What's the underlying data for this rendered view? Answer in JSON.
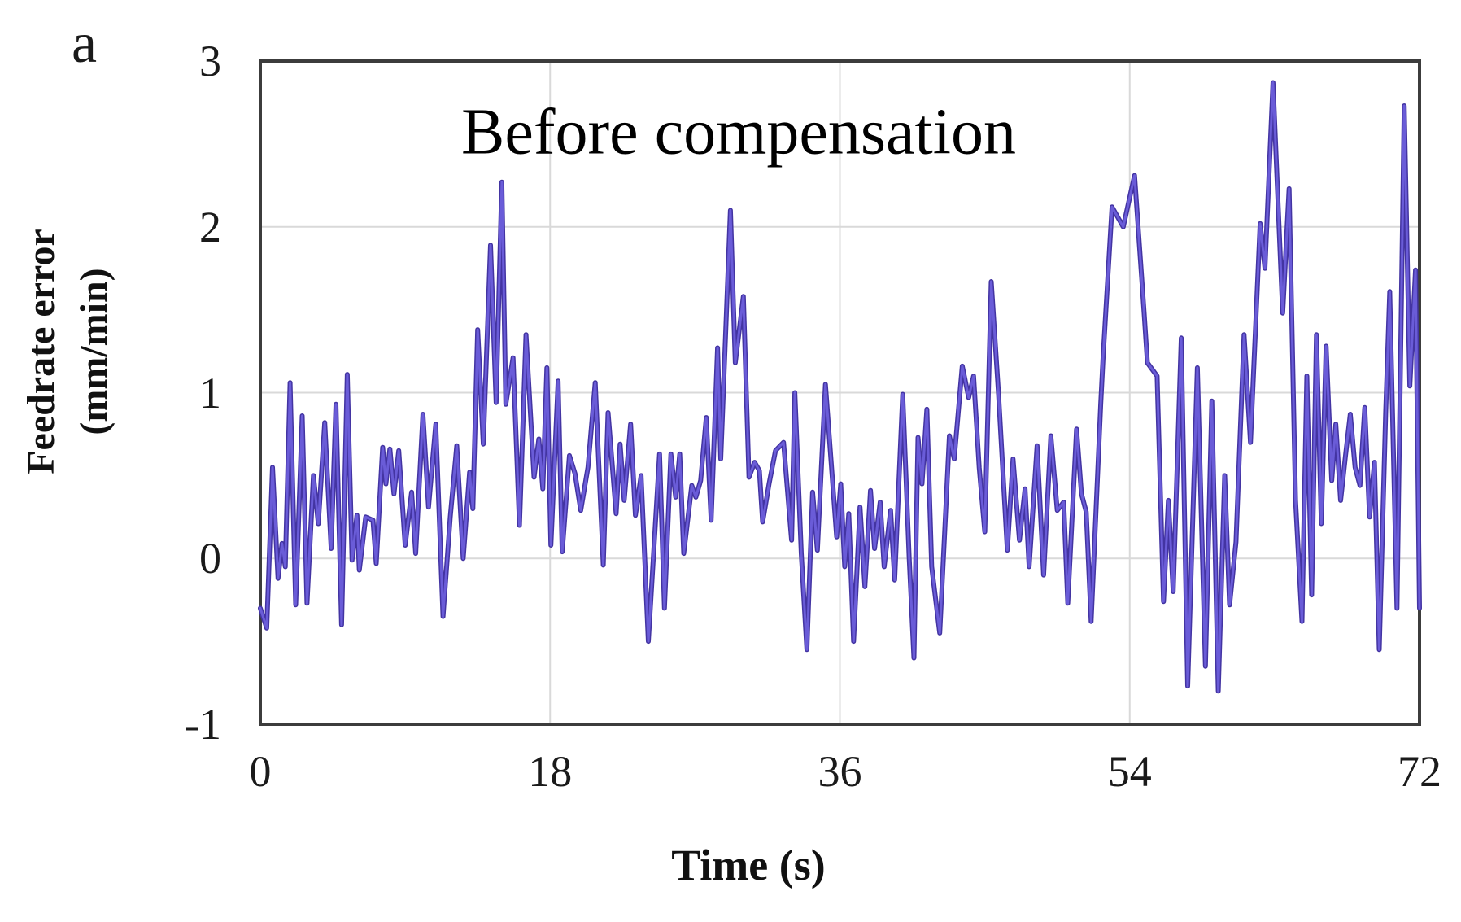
{
  "figure": {
    "panel_label": "a"
  },
  "chart_data": {
    "type": "line",
    "title": "Before compensation",
    "xlabel": "Time (s)",
    "ylabel_line1": "Feedrate error",
    "ylabel_line2": "(mm/min)",
    "xlim": [
      0,
      72
    ],
    "ylim": [
      -1,
      3
    ],
    "x_ticks": [
      "0",
      "18",
      "36",
      "54",
      "72"
    ],
    "y_ticks": [
      "3",
      "2",
      "1",
      "0",
      "-1"
    ],
    "x_tick_values": [
      0,
      18,
      36,
      54,
      72
    ],
    "y_tick_values": [
      3,
      2,
      1,
      0,
      -1
    ],
    "grid_x": [
      18,
      36,
      54
    ],
    "grid_y": [
      0,
      1,
      2
    ],
    "grid_on": true,
    "legend_position": "none",
    "line_color": "#6a5cd8",
    "line_edge_color": "#4334a2",
    "grid_color": "#d9d9d9",
    "frame_color": "#3c3c3c",
    "series": [
      {
        "name": "feedrate-error-before-compensation",
        "points": [
          [
            0,
            -0.3
          ],
          [
            0.4,
            -0.42
          ],
          [
            0.76,
            0.55
          ],
          [
            1.1,
            -0.12
          ],
          [
            1.35,
            0.09
          ],
          [
            1.55,
            -0.05
          ],
          [
            1.85,
            1.06
          ],
          [
            2.2,
            -0.28
          ],
          [
            2.6,
            0.86
          ],
          [
            2.9,
            -0.27
          ],
          [
            3.3,
            0.5
          ],
          [
            3.6,
            0.21
          ],
          [
            4.0,
            0.82
          ],
          [
            4.4,
            0.06
          ],
          [
            4.7,
            0.93
          ],
          [
            5.05,
            -0.4
          ],
          [
            5.4,
            1.11
          ],
          [
            5.7,
            -0.01
          ],
          [
            6.0,
            0.26
          ],
          [
            6.15,
            -0.07
          ],
          [
            6.55,
            0.25
          ],
          [
            7.0,
            0.23
          ],
          [
            7.2,
            -0.03
          ],
          [
            7.6,
            0.67
          ],
          [
            7.8,
            0.45
          ],
          [
            8.05,
            0.66
          ],
          [
            8.3,
            0.39
          ],
          [
            8.6,
            0.65
          ],
          [
            9.0,
            0.08
          ],
          [
            9.4,
            0.4
          ],
          [
            9.65,
            0.03
          ],
          [
            10.1,
            0.87
          ],
          [
            10.45,
            0.31
          ],
          [
            10.9,
            0.81
          ],
          [
            11.35,
            -0.35
          ],
          [
            11.8,
            0.25
          ],
          [
            12.2,
            0.68
          ],
          [
            12.6,
            0.0
          ],
          [
            13.0,
            0.52
          ],
          [
            13.2,
            0.3
          ],
          [
            13.5,
            1.38
          ],
          [
            13.85,
            0.69
          ],
          [
            14.3,
            1.89
          ],
          [
            14.65,
            0.94
          ],
          [
            15.0,
            2.27
          ],
          [
            15.25,
            0.93
          ],
          [
            15.7,
            1.21
          ],
          [
            16.1,
            0.2
          ],
          [
            16.5,
            1.35
          ],
          [
            17.0,
            0.49
          ],
          [
            17.3,
            0.72
          ],
          [
            17.55,
            0.42
          ],
          [
            17.8,
            1.15
          ],
          [
            18.05,
            0.08
          ],
          [
            18.5,
            1.07
          ],
          [
            18.75,
            0.04
          ],
          [
            19.2,
            0.62
          ],
          [
            19.55,
            0.51
          ],
          [
            19.9,
            0.29
          ],
          [
            20.35,
            0.55
          ],
          [
            20.8,
            1.06
          ],
          [
            21.3,
            -0.04
          ],
          [
            21.6,
            0.88
          ],
          [
            22.1,
            0.27
          ],
          [
            22.35,
            0.69
          ],
          [
            22.6,
            0.35
          ],
          [
            23.0,
            0.81
          ],
          [
            23.3,
            0.26
          ],
          [
            23.65,
            0.5
          ],
          [
            24.1,
            -0.5
          ],
          [
            24.8,
            0.63
          ],
          [
            25.1,
            -0.3
          ],
          [
            25.5,
            0.63
          ],
          [
            25.8,
            0.37
          ],
          [
            26.05,
            0.63
          ],
          [
            26.3,
            0.03
          ],
          [
            26.8,
            0.44
          ],
          [
            27.05,
            0.37
          ],
          [
            27.35,
            0.47
          ],
          [
            27.7,
            0.85
          ],
          [
            28.0,
            0.23
          ],
          [
            28.4,
            1.27
          ],
          [
            28.6,
            0.6
          ],
          [
            29.2,
            2.1
          ],
          [
            29.5,
            1.18
          ],
          [
            30.0,
            1.58
          ],
          [
            30.35,
            0.49
          ],
          [
            30.7,
            0.58
          ],
          [
            31.0,
            0.53
          ],
          [
            31.2,
            0.22
          ],
          [
            31.6,
            0.45
          ],
          [
            32.0,
            0.65
          ],
          [
            32.5,
            0.7
          ],
          [
            33.0,
            0.11
          ],
          [
            33.2,
            1.0
          ],
          [
            33.6,
            0.03
          ],
          [
            33.95,
            -0.55
          ],
          [
            34.3,
            0.4
          ],
          [
            34.6,
            0.05
          ],
          [
            35.1,
            1.05
          ],
          [
            35.8,
            0.13
          ],
          [
            36.05,
            0.45
          ],
          [
            36.3,
            -0.05
          ],
          [
            36.55,
            0.27
          ],
          [
            36.85,
            -0.5
          ],
          [
            37.25,
            0.31
          ],
          [
            37.55,
            -0.17
          ],
          [
            37.9,
            0.41
          ],
          [
            38.15,
            0.06
          ],
          [
            38.5,
            0.34
          ],
          [
            38.75,
            -0.05
          ],
          [
            39.15,
            0.29
          ],
          [
            39.4,
            -0.13
          ],
          [
            39.9,
            0.99
          ],
          [
            40.3,
            0.01
          ],
          [
            40.6,
            -0.6
          ],
          [
            40.85,
            0.73
          ],
          [
            41.1,
            0.45
          ],
          [
            41.4,
            0.9
          ],
          [
            41.7,
            -0.05
          ],
          [
            42.2,
            -0.45
          ],
          [
            42.8,
            0.74
          ],
          [
            43.1,
            0.6
          ],
          [
            43.6,
            1.16
          ],
          [
            44.0,
            0.97
          ],
          [
            44.3,
            1.1
          ],
          [
            44.65,
            0.55
          ],
          [
            45.0,
            0.16
          ],
          [
            45.4,
            1.67
          ],
          [
            45.85,
            1.0
          ],
          [
            46.4,
            0.05
          ],
          [
            46.75,
            0.6
          ],
          [
            47.15,
            0.11
          ],
          [
            47.5,
            0.42
          ],
          [
            47.75,
            -0.05
          ],
          [
            48.25,
            0.68
          ],
          [
            48.65,
            -0.1
          ],
          [
            49.1,
            0.74
          ],
          [
            49.5,
            0.29
          ],
          [
            49.9,
            0.34
          ],
          [
            50.15,
            -0.27
          ],
          [
            50.7,
            0.78
          ],
          [
            51.0,
            0.39
          ],
          [
            51.3,
            0.28
          ],
          [
            51.6,
            -0.38
          ],
          [
            52.2,
            0.93
          ],
          [
            52.35,
            1.22
          ],
          [
            52.9,
            2.12
          ],
          [
            53.6,
            2.0
          ],
          [
            54.3,
            2.31
          ],
          [
            54.9,
            1.47
          ],
          [
            55.1,
            1.18
          ],
          [
            55.7,
            1.1
          ],
          [
            56.1,
            -0.26
          ],
          [
            56.4,
            0.35
          ],
          [
            56.7,
            -0.2
          ],
          [
            57.2,
            1.33
          ],
          [
            57.6,
            -0.77
          ],
          [
            58.2,
            1.15
          ],
          [
            58.7,
            -0.65
          ],
          [
            59.1,
            0.95
          ],
          [
            59.5,
            -0.8
          ],
          [
            59.9,
            0.5
          ],
          [
            60.2,
            -0.28
          ],
          [
            60.6,
            0.1
          ],
          [
            61.1,
            1.35
          ],
          [
            61.5,
            0.7
          ],
          [
            62.1,
            2.02
          ],
          [
            62.4,
            1.75
          ],
          [
            62.9,
            2.87
          ],
          [
            63.5,
            1.48
          ],
          [
            63.9,
            2.23
          ],
          [
            64.3,
            0.35
          ],
          [
            64.7,
            -0.38
          ],
          [
            65.0,
            1.1
          ],
          [
            65.3,
            -0.22
          ],
          [
            65.6,
            1.35
          ],
          [
            65.9,
            0.21
          ],
          [
            66.2,
            1.28
          ],
          [
            66.55,
            0.47
          ],
          [
            66.8,
            0.81
          ],
          [
            67.1,
            0.35
          ],
          [
            67.4,
            0.62
          ],
          [
            67.7,
            0.87
          ],
          [
            68.0,
            0.55
          ],
          [
            68.3,
            0.44
          ],
          [
            68.6,
            0.91
          ],
          [
            68.9,
            0.25
          ],
          [
            69.2,
            0.58
          ],
          [
            69.5,
            -0.55
          ],
          [
            69.9,
            0.88
          ],
          [
            70.15,
            1.61
          ],
          [
            70.6,
            -0.3
          ],
          [
            71.05,
            2.73
          ],
          [
            71.4,
            1.04
          ],
          [
            71.75,
            1.74
          ],
          [
            72.0,
            -0.3
          ]
        ]
      }
    ]
  }
}
